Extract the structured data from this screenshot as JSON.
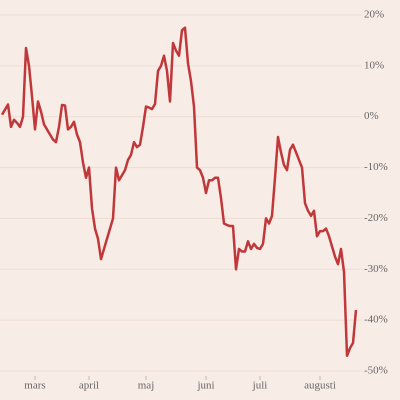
{
  "chart_data": {
    "type": "line",
    "categories": [
      null,
      null,
      null,
      null,
      null,
      null,
      null,
      null,
      null,
      null,
      null,
      "mars",
      null,
      null,
      null,
      null,
      null,
      null,
      null,
      null,
      null,
      null,
      null,
      null,
      null,
      null,
      null,
      null,
      null,
      "april",
      null,
      null,
      null,
      null,
      null,
      null,
      null,
      null,
      null,
      null,
      null,
      null,
      null,
      null,
      null,
      null,
      null,
      null,
      "maj",
      null,
      null,
      null,
      null,
      null,
      null,
      null,
      null,
      null,
      null,
      null,
      null,
      null,
      null,
      null,
      null,
      null,
      null,
      null,
      "juni",
      null,
      null,
      null,
      null,
      null,
      null,
      null,
      null,
      null,
      null,
      null,
      null,
      null,
      null,
      null,
      null,
      null,
      "juli",
      null,
      null,
      null,
      null,
      null,
      null,
      null,
      null,
      null,
      null,
      null,
      null,
      null,
      null,
      null,
      null,
      null,
      null,
      null,
      "augusti",
      null,
      null,
      null,
      null,
      null,
      null,
      null,
      null,
      null,
      null,
      null,
      null
    ],
    "values": [
      0.4,
      1.4,
      2.4,
      -2,
      -0.6,
      -1.2,
      -2,
      0,
      13.5,
      10,
      4,
      -2.5,
      3,
      1,
      -1.5,
      -2.5,
      -3.5,
      -4.5,
      -5,
      -2,
      2.3,
      2.2,
      -2.5,
      -2,
      -1,
      -3.5,
      -5,
      -9,
      -12,
      -10,
      -18,
      -22,
      -24,
      -28,
      -26,
      -24,
      -22,
      -20,
      -10,
      -12.5,
      -11.5,
      -10.5,
      -8.5,
      -7.5,
      -5,
      -6,
      -5.5,
      -2,
      2,
      1.8,
      1.5,
      2.5,
      9,
      10,
      12,
      9,
      3,
      14.5,
      13,
      12,
      17,
      17.5,
      10.5,
      7,
      2,
      -10,
      -10.5,
      -12,
      -15,
      -12.5,
      -12.5,
      -12,
      -12,
      -16,
      -21,
      -21.3,
      -21.5,
      -21.5,
      -30,
      -26,
      -26.5,
      -26.5,
      -24.5,
      -26,
      -25,
      -25.8,
      -26,
      -25,
      -20,
      -21,
      -19.5,
      -12,
      -4,
      -7,
      -9.5,
      -10.5,
      -6.5,
      -5.5,
      -7,
      -8.5,
      -10,
      -17,
      -18.5,
      -19.5,
      -18.5,
      -23.5,
      -22.5,
      -22.5,
      -22,
      -23.5,
      -25.5,
      -27.5,
      -29,
      -26,
      -30.5,
      -47,
      -45.5,
      -44.5,
      -38
    ],
    "color": "#c0383a",
    "ylim": [
      -50,
      20
    ],
    "yticks": [
      {
        "value": -50,
        "label": "-50%"
      },
      {
        "value": -40,
        "label": "-40%"
      },
      {
        "value": -30,
        "label": "-30%"
      },
      {
        "value": -20,
        "label": "-20%"
      },
      {
        "value": -10,
        "label": "-10%"
      },
      {
        "value": 0,
        "label": "0%"
      },
      {
        "value": 10,
        "label": "10%"
      },
      {
        "value": 20,
        "label": "20%"
      }
    ],
    "grid": true
  }
}
